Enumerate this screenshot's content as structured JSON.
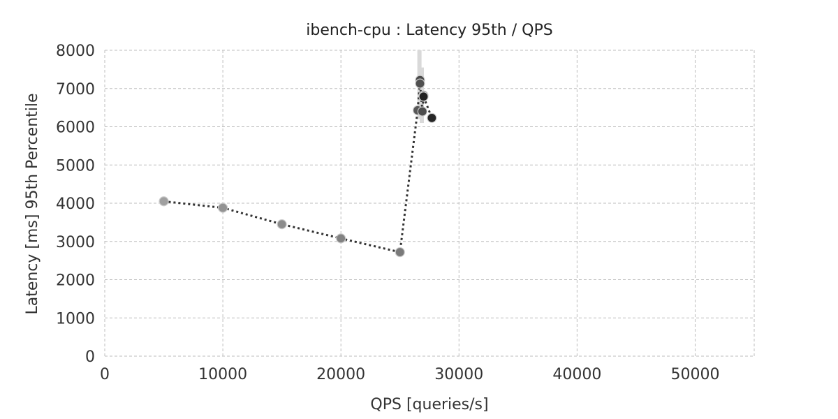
{
  "chart_data": {
    "type": "line",
    "title": "ibench-cpu : Latency 95th / QPS",
    "xlabel": "QPS [queries/s]",
    "ylabel": "Latency [ms] 95th Percentile",
    "xlim": [
      0,
      55000
    ],
    "ylim": [
      0,
      8000
    ],
    "xticks": [
      0,
      10000,
      20000,
      30000,
      40000,
      50000
    ],
    "yticks": [
      0,
      1000,
      2000,
      3000,
      4000,
      5000,
      6000,
      7000,
      8000
    ],
    "grid": true,
    "line_style": "dotted",
    "line_color": "#333333",
    "series": [
      {
        "x": [
          5000,
          10000,
          15000,
          20000,
          25000,
          26500,
          26700,
          26700,
          26900,
          27000,
          27000,
          27700
        ],
        "y": [
          4050,
          3880,
          3450,
          3080,
          2720,
          6430,
          7220,
          7130,
          6400,
          6820,
          6790,
          6230
        ],
        "point_colors": [
          "#a0a0a0",
          "#939393",
          "#8c8c8c",
          "#828282",
          "#7a7a7a",
          "#585858",
          "#4a4a4a",
          "#505050",
          "#4d4d4d",
          "#2a2a2a",
          "#222222",
          "#262626"
        ]
      }
    ],
    "error_bars": [
      {
        "x": 26650,
        "low": 6200,
        "high": 8000
      },
      {
        "x": 26850,
        "low": 6100,
        "high": 7550
      }
    ]
  }
}
